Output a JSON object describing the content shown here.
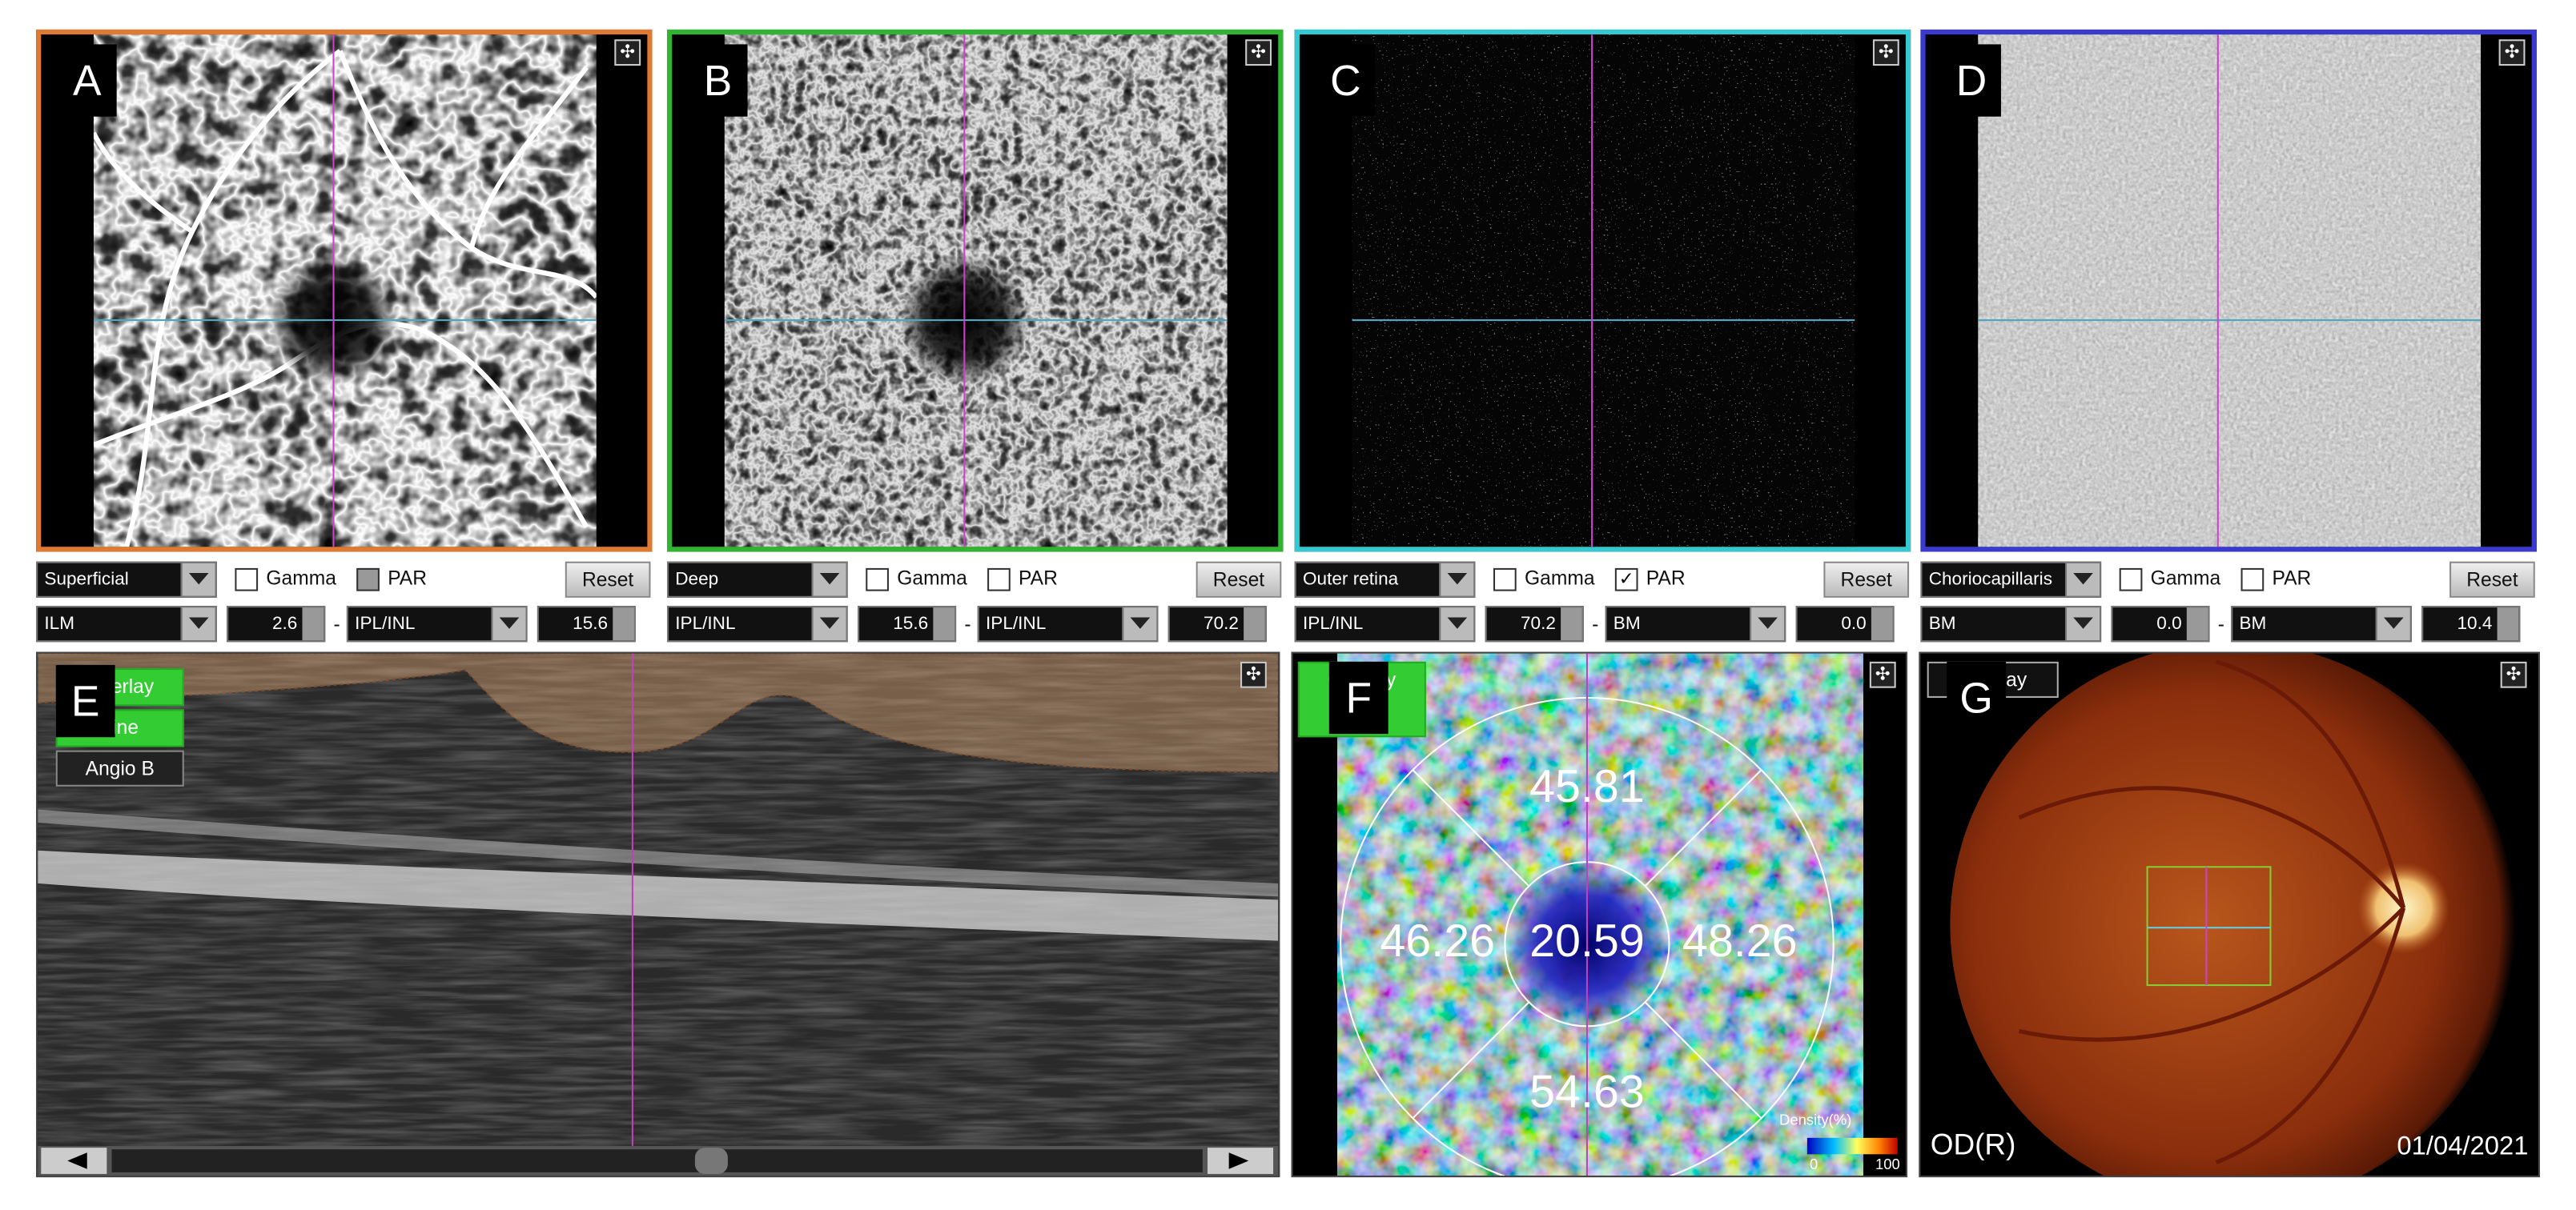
{
  "panels": [
    {
      "label": "A",
      "frame_color": "#e07a30",
      "layer": "Superficial",
      "gamma": "Gamma",
      "par": "PAR",
      "par_checked": false,
      "reset": "Reset",
      "upper": "ILM",
      "upper_offset": "2.6",
      "dash": "-",
      "lower": "IPL/INL",
      "lower_offset": "15.6"
    },
    {
      "label": "B",
      "frame_color": "#2fb52f",
      "layer": "Deep",
      "gamma": "Gamma",
      "par": "PAR",
      "par_checked": false,
      "reset": "Reset",
      "upper": "IPL/INL",
      "upper_offset": "15.6",
      "dash": "-",
      "lower": "IPL/INL",
      "lower_offset": "70.2"
    },
    {
      "label": "C",
      "frame_color": "#33c9d0",
      "layer": "Outer retina",
      "gamma": "Gamma",
      "par": "PAR",
      "par_checked": true,
      "reset": "Reset",
      "upper": "IPL/INL",
      "upper_offset": "70.2",
      "dash": "-",
      "lower": "BM",
      "lower_offset": "0.0"
    },
    {
      "label": "D",
      "frame_color": "#3a3ad0",
      "layer": "Choriocapillaris",
      "gamma": "Gamma",
      "par": "PAR",
      "par_checked": false,
      "reset": "Reset",
      "upper": "BM",
      "upper_offset": "0.0",
      "dash": "-",
      "lower": "BM",
      "lower_offset": "10.4"
    }
  ],
  "bscan": {
    "label": "E",
    "buttons": [
      "Overlay",
      "Line",
      "Angio B"
    ]
  },
  "density": {
    "label": "F",
    "button": "Overlay",
    "superior": "45.81",
    "left": "46.26",
    "center": "20.59",
    "right": "48.26",
    "inferior": "54.63",
    "legend_title": "Density(%)",
    "legend_min": "0",
    "legend_max": "100"
  },
  "fundus": {
    "label": "G",
    "button": "Overlay",
    "eye": "OD(R)",
    "date": "01/04/2021"
  }
}
